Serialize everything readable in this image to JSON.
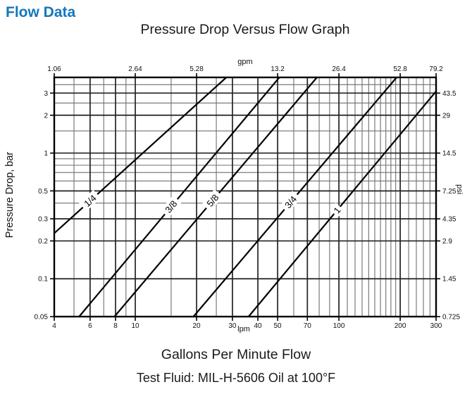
{
  "page": {
    "heading": "Flow Data"
  },
  "colors": {
    "heading_blue": "#1577be",
    "text": "#1a1a1a",
    "grid_major": "#222222",
    "grid_minor": "#6f6f6f",
    "line": "#000000"
  },
  "chart_data": {
    "type": "line",
    "title": "Pressure Drop Versus Flow Graph",
    "scale": "log-log",
    "x_axis": {
      "label": "lpm",
      "range_lpm": [
        4,
        300
      ],
      "ticks": [
        4,
        6,
        8,
        10,
        20,
        30,
        40,
        50,
        70,
        100,
        200,
        300
      ]
    },
    "top_axis": {
      "label": "gpm",
      "tick_labels": [
        "1.06",
        "2.64",
        "5.28",
        "13.2",
        "26.4",
        "52.8",
        "79.2"
      ],
      "tick_positions_lpm": [
        4,
        10,
        20,
        50,
        100,
        200,
        300
      ]
    },
    "y_axis": {
      "label": "Pressure Drop, bar",
      "range_bar": [
        0.05,
        4
      ],
      "tick_labels": [
        "3",
        "2",
        "1",
        "0.5",
        "0.3",
        "0.2",
        "0.1",
        "0.05"
      ],
      "tick_values": [
        3,
        2,
        1,
        0.5,
        0.3,
        0.2,
        0.1,
        0.05
      ]
    },
    "right_axis": {
      "label": "psi",
      "tick_labels": [
        "43.5",
        "29",
        "14.5",
        "7.25",
        "4.35",
        "2.9",
        "1.45",
        "0.725"
      ],
      "tick_values_bar": [
        3,
        2,
        1,
        0.5,
        0.3,
        0.2,
        0.1,
        0.05
      ]
    },
    "grid": {
      "x_minor_lpm": [
        5,
        7,
        9,
        15,
        25,
        60,
        80,
        90,
        110,
        120,
        130,
        140,
        150,
        160,
        170,
        180,
        190,
        220,
        240,
        260,
        280
      ],
      "x_major_lpm": [
        4,
        6,
        8,
        10,
        20,
        30,
        40,
        50,
        70,
        100,
        200,
        300
      ],
      "y_minor_bar": [
        0.4,
        0.6,
        0.7,
        0.8,
        0.9,
        1.5,
        2.5,
        3.5
      ],
      "y_major_bar": [
        0.05,
        0.1,
        0.2,
        0.3,
        0.5,
        1,
        2,
        3,
        4
      ]
    },
    "series": [
      {
        "name": "1/4",
        "points_lpm_bar": [
          [
            4,
            0.23
          ],
          [
            28,
            4.0
          ]
        ],
        "label_at_lpm": 6
      },
      {
        "name": "3/8",
        "points_lpm_bar": [
          [
            5.3,
            0.05
          ],
          [
            51,
            4.0
          ]
        ],
        "label_at_lpm": 15
      },
      {
        "name": "5/8",
        "points_lpm_bar": [
          [
            7.9,
            0.05
          ],
          [
            78,
            4.0
          ]
        ],
        "label_at_lpm": 24
      },
      {
        "name": "3/4",
        "points_lpm_bar": [
          [
            19.3,
            0.05
          ],
          [
            192,
            4.0
          ]
        ],
        "label_at_lpm": 58
      },
      {
        "name": "1",
        "points_lpm_bar": [
          [
            36,
            0.05
          ],
          [
            300,
            3.1
          ]
        ],
        "label_at_lpm": 98
      }
    ],
    "xlabel": "Gallons Per Minute Flow",
    "footnote": "Test Fluid: MIL-H-5606 Oil at 100°F"
  }
}
